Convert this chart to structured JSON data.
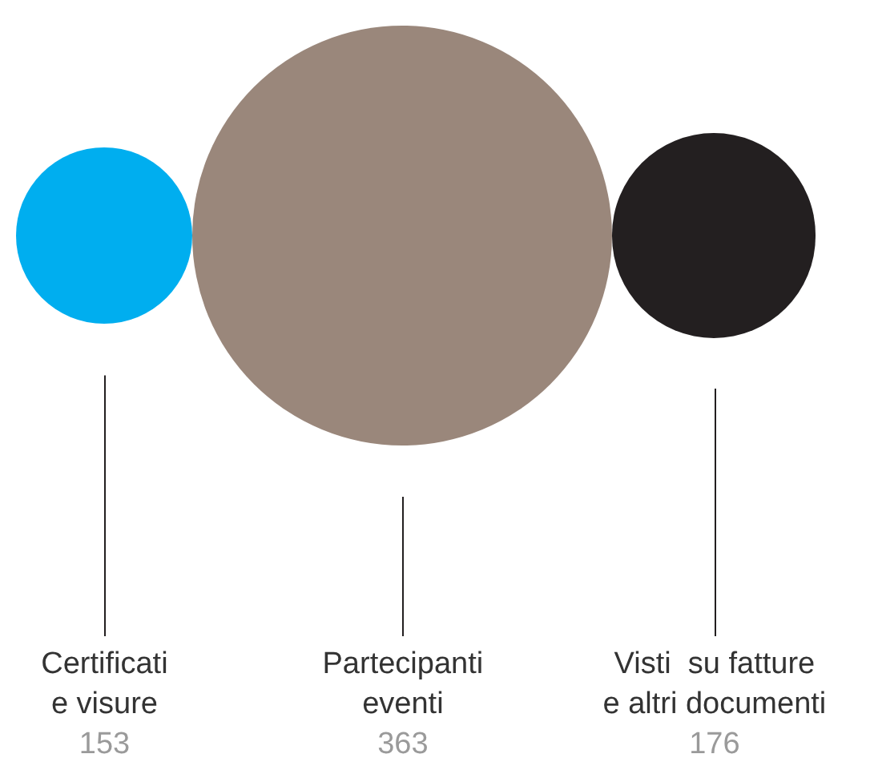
{
  "chart_data": {
    "type": "other",
    "categories": [
      "Certificati\ne visure",
      "Partecipanti\neventi",
      "Visti  su fatture\ne altri documenti"
    ],
    "values": [
      153,
      363,
      176
    ],
    "colors": [
      "#00aeef",
      "#9a877b",
      "#231f20"
    ],
    "data_labels": true
  }
}
